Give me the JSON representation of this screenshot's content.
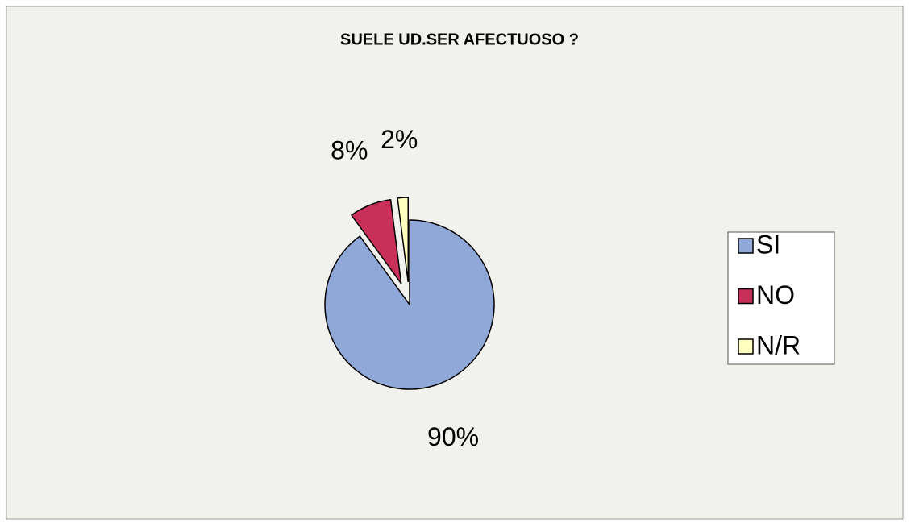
{
  "chart_data": {
    "type": "pie",
    "title": "SUELE UD.SER AFECTUOSO ?",
    "categories": [
      "SI",
      "NO",
      "N/R"
    ],
    "values": [
      90,
      8,
      2
    ],
    "value_labels": [
      "90%",
      "8%",
      "2%"
    ],
    "colors": [
      "#8fa8d8",
      "#c8305a",
      "#ffffc0"
    ],
    "legend": "right"
  }
}
